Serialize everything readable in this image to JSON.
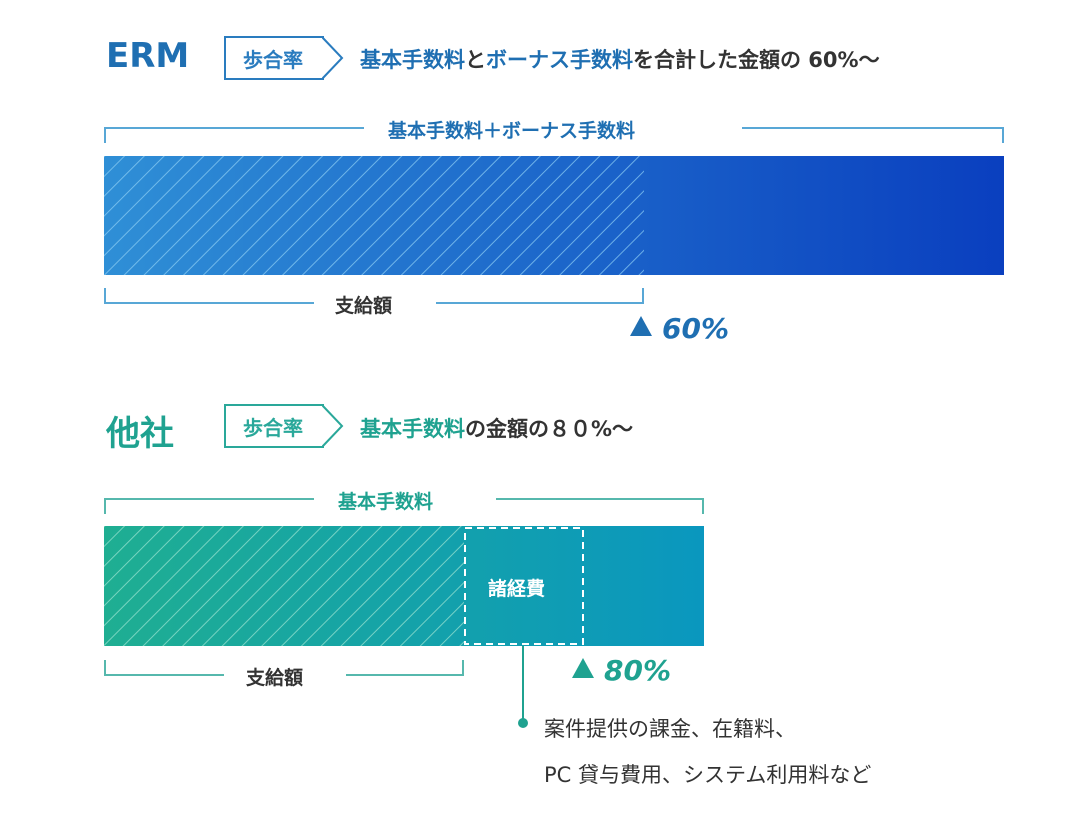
{
  "erm": {
    "name": "ERM",
    "tag": "歩合率",
    "desc_1": "基本手数料",
    "desc_2": "と",
    "desc_3": "ボーナス手数料",
    "desc_4": "を合計した金額の 60%～",
    "top_label": "基本手数料＋ボーナス手数料",
    "bottom_label": "支給額",
    "percent": "60%",
    "payout_fraction": 0.6,
    "colors": {
      "accent": "#1f6fb2",
      "bar_start": "#2f8fd6",
      "bar_end": "#0a3fbf"
    }
  },
  "other": {
    "name": "他社",
    "tag": "歩合率",
    "desc_1": "基本手数料",
    "desc_2": "の金額の８０%～",
    "top_label": "基本手数料",
    "bottom_label": "支給額",
    "expense_label": "諸経費",
    "percent": "80%",
    "note_line1": "案件提供の課金、在籍料、",
    "note_line2": "PC 貸与費用、システム利用料など",
    "colors": {
      "accent": "#1fa290",
      "bar_start": "#1fae92",
      "bar_end": "#0a97bf"
    }
  },
  "icons": {
    "triangle": "triangle-up-icon"
  }
}
